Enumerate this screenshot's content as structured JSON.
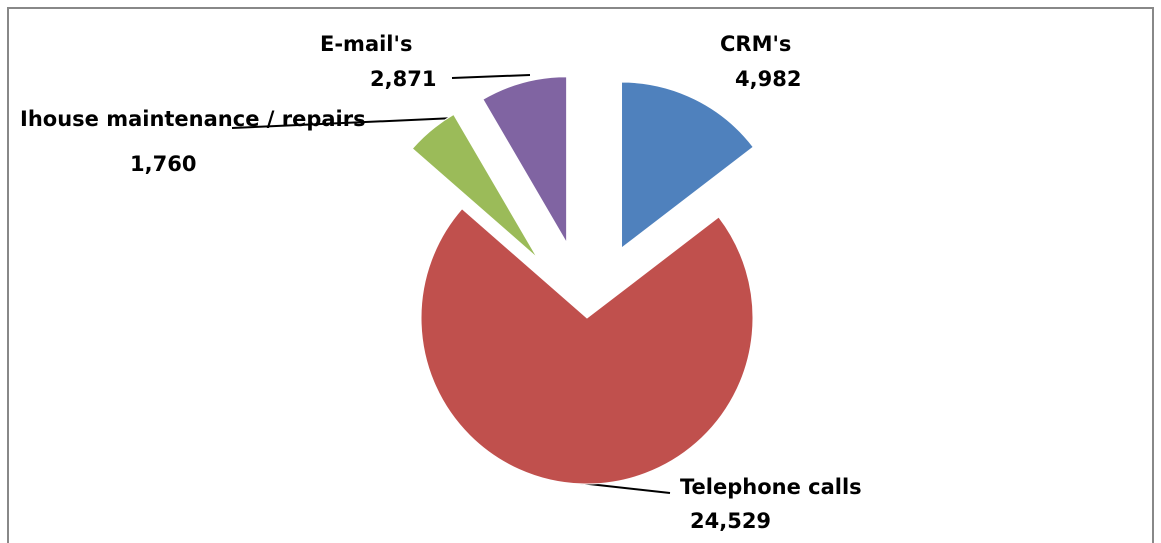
{
  "chart_data": {
    "type": "pie",
    "categories": [
      "CRM's",
      "Telephone calls",
      "Ihouse maintenance / repairs",
      "E-mail's"
    ],
    "values": [
      4982,
      24529,
      1760,
      2871
    ],
    "value_labels": [
      "4,982",
      "24,529",
      "1,760",
      "2,871"
    ],
    "colors": [
      "#4f81bd",
      "#c0504d",
      "#9bbb59",
      "#8064a2"
    ],
    "exploded": true
  }
}
